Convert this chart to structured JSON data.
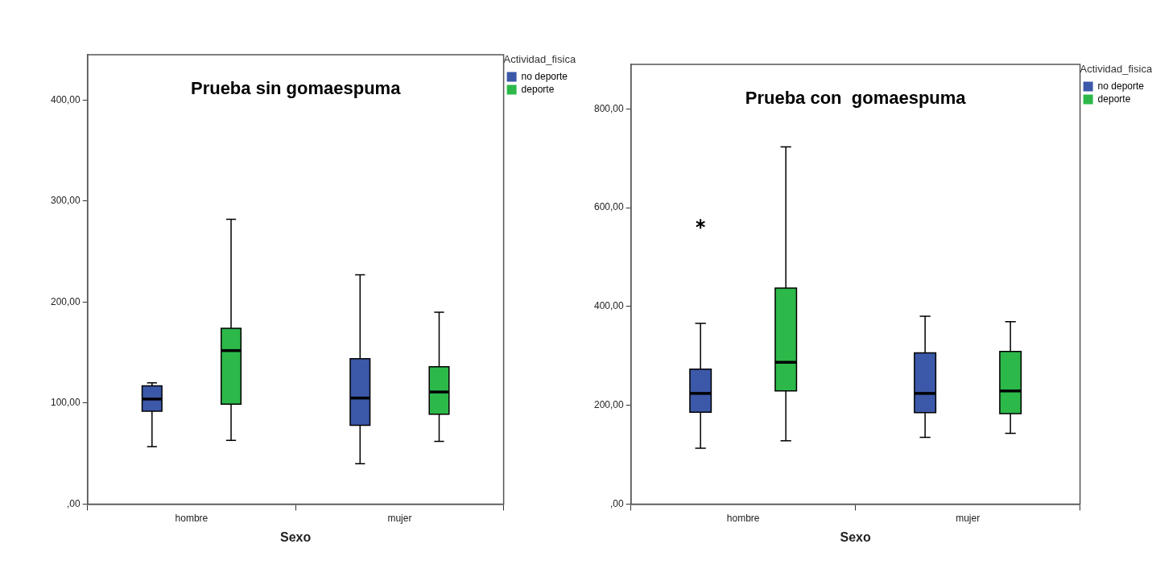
{
  "chart_data": [
    {
      "type": "box",
      "title": "Prueba sin gomaespuma",
      "xlabel": "Sexo",
      "legend_title": "Actividad_fisica",
      "legend": "right",
      "grid": false,
      "categories": [
        "hombre",
        "mujer"
      ],
      "ylim": [
        0,
        445
      ],
      "yticks": [
        {
          "value": 0,
          "label": ",00"
        },
        {
          "value": 100,
          "label": "100,00"
        },
        {
          "value": 200,
          "label": "200,00"
        },
        {
          "value": 300,
          "label": "300,00"
        },
        {
          "value": 400,
          "label": "400,00"
        }
      ],
      "series": [
        {
          "name": "no deporte",
          "color": "#3c58a8",
          "boxes": [
            {
              "low": 57,
              "q1": 92,
              "median": 104,
              "q3": 117,
              "high": 120
            },
            {
              "low": 40,
              "q1": 78,
              "median": 105,
              "q3": 144,
              "high": 227
            }
          ]
        },
        {
          "name": "deporte",
          "color": "#2db84a",
          "boxes": [
            {
              "low": 63,
              "q1": 99,
              "median": 152,
              "q3": 174,
              "high": 282
            },
            {
              "low": 62,
              "q1": 89,
              "median": 111,
              "q3": 136,
              "high": 190
            }
          ]
        }
      ]
    },
    {
      "type": "box",
      "title": "Prueba con  gomaespuma",
      "xlabel": "Sexo",
      "legend_title": "Actividad_fisica",
      "legend": "right",
      "grid": false,
      "categories": [
        "hombre",
        "mujer"
      ],
      "ylim": [
        0,
        890
      ],
      "yticks": [
        {
          "value": 0,
          "label": ",00"
        },
        {
          "value": 200,
          "label": "200,00"
        },
        {
          "value": 400,
          "label": "400,00"
        },
        {
          "value": 600,
          "label": "600,00"
        },
        {
          "value": 800,
          "label": "800,00"
        }
      ],
      "series": [
        {
          "name": "no deporte",
          "color": "#3c58a8",
          "boxes": [
            {
              "low": 113,
              "q1": 186,
              "median": 224,
              "q3": 273,
              "high": 366,
              "outliers": [
                567
              ]
            },
            {
              "low": 135,
              "q1": 185,
              "median": 224,
              "q3": 306,
              "high": 380
            }
          ]
        },
        {
          "name": "deporte",
          "color": "#2db84a",
          "boxes": [
            {
              "low": 128,
              "q1": 229,
              "median": 287,
              "q3": 437,
              "high": 723
            },
            {
              "low": 143,
              "q1": 183,
              "median": 229,
              "q3": 309,
              "high": 369
            }
          ]
        }
      ]
    }
  ]
}
